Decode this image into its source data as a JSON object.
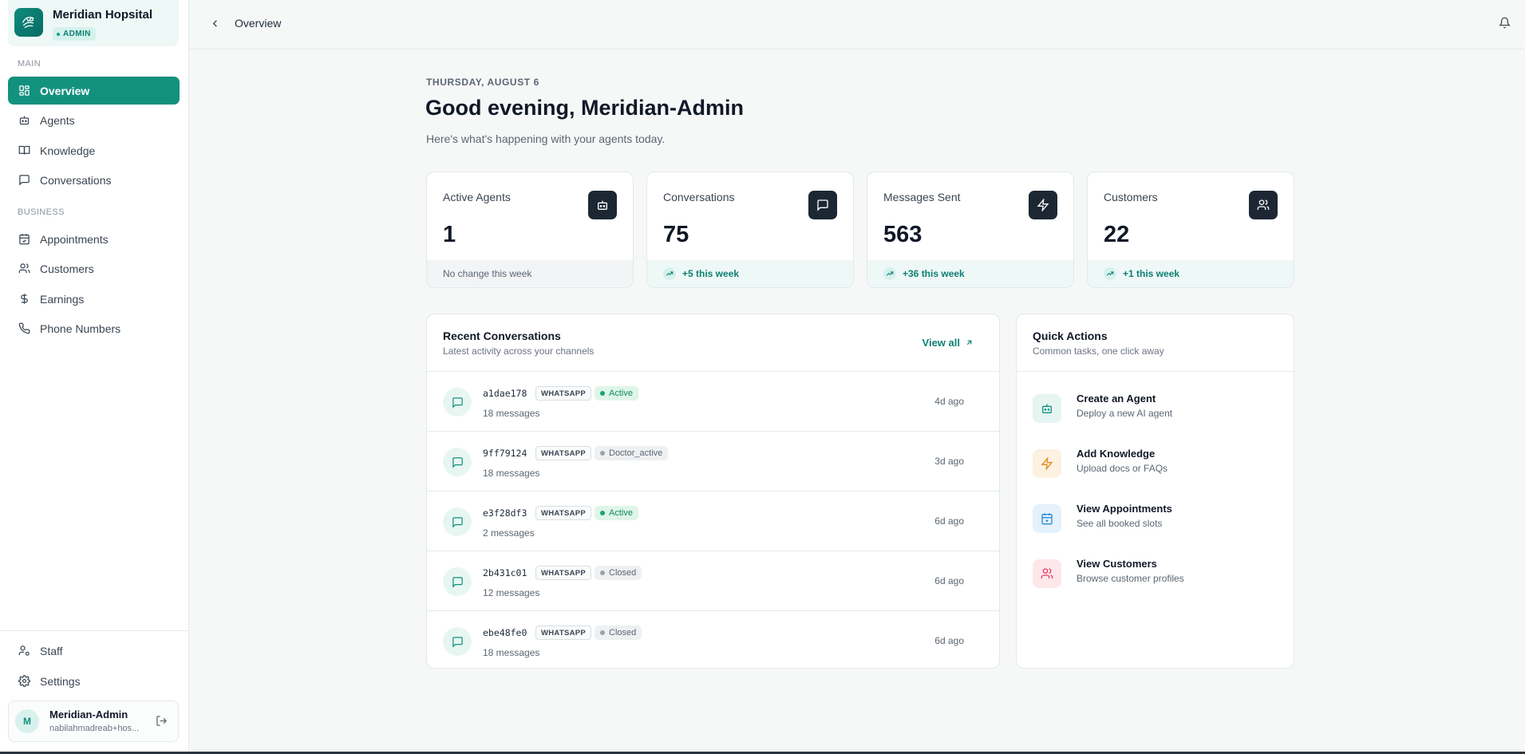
{
  "brand": {
    "name": "Meridian Hopsital",
    "badge": "ADMIN"
  },
  "sidebar": {
    "sections": {
      "main": "MAIN",
      "business": "BUSINESS"
    },
    "items": [
      {
        "label": "Overview",
        "icon": "grid-icon",
        "active": true
      },
      {
        "label": "Agents",
        "icon": "bot-icon"
      },
      {
        "label": "Knowledge",
        "icon": "book-icon"
      },
      {
        "label": "Conversations",
        "icon": "message-icon"
      },
      {
        "label": "Appointments",
        "icon": "calendar-icon"
      },
      {
        "label": "Customers",
        "icon": "users-icon"
      },
      {
        "label": "Earnings",
        "icon": "dollar-icon"
      },
      {
        "label": "Phone Numbers",
        "icon": "phone-icon"
      }
    ],
    "footer_items": [
      {
        "label": "Staff",
        "icon": "user-cog-icon"
      },
      {
        "label": "Settings",
        "icon": "gear-icon"
      }
    ],
    "user": {
      "initial": "M",
      "name": "Meridian-Admin",
      "email": "nabilahmadreab+hos..."
    }
  },
  "topbar": {
    "breadcrumb": "Overview"
  },
  "header": {
    "date": "THURSDAY, AUGUST 6",
    "greeting": "Good evening, Meridian-Admin",
    "subtitle": "Here's what's happening with your agents today."
  },
  "stats": [
    {
      "label": "Active Agents",
      "value": "1",
      "foot": "No change this week",
      "icon": "bot-icon",
      "trend": "neutral"
    },
    {
      "label": "Conversations",
      "value": "75",
      "foot": "+5 this week",
      "icon": "message-icon",
      "trend": "up"
    },
    {
      "label": "Messages Sent",
      "value": "563",
      "foot": "+36 this week",
      "icon": "zap-icon",
      "trend": "up"
    },
    {
      "label": "Customers",
      "value": "22",
      "foot": "+1 this week",
      "icon": "users-icon",
      "trend": "up"
    }
  ],
  "recent": {
    "title": "Recent Conversations",
    "subtitle": "Latest activity across your channels",
    "view_all": "View all",
    "rows": [
      {
        "id": "a1dae178",
        "channel": "WHATSAPP",
        "status": "Active",
        "messages": "18 messages",
        "time": "4d ago"
      },
      {
        "id": "9ff79124",
        "channel": "WHATSAPP",
        "status": "Doctor_active",
        "messages": "18 messages",
        "time": "3d ago"
      },
      {
        "id": "e3f28df3",
        "channel": "WHATSAPP",
        "status": "Active",
        "messages": "2 messages",
        "time": "6d ago"
      },
      {
        "id": "2b431c01",
        "channel": "WHATSAPP",
        "status": "Closed",
        "messages": "12 messages",
        "time": "6d ago"
      },
      {
        "id": "ebe48fe0",
        "channel": "WHATSAPP",
        "status": "Closed",
        "messages": "18 messages",
        "time": "6d ago"
      }
    ]
  },
  "quick_actions": {
    "title": "Quick Actions",
    "subtitle": "Common tasks, one click away",
    "items": [
      {
        "title": "Create an Agent",
        "subtitle": "Deploy a new AI agent",
        "icon": "bot-icon",
        "color": "#13917f"
      },
      {
        "title": "Add Knowledge",
        "subtitle": "Upload docs or FAQs",
        "icon": "zap-icon",
        "color": "#e58a1f"
      },
      {
        "title": "View Appointments",
        "subtitle": "See all booked slots",
        "icon": "calendar-plus-icon",
        "color": "#2b8bd6"
      },
      {
        "title": "View Customers",
        "subtitle": "Browse customer profiles",
        "icon": "users-icon",
        "color": "#e0405e"
      }
    ]
  },
  "colors": {
    "accent": "#13917f",
    "dark": "#1d2733",
    "active_status": "#14a86e",
    "closed_status": "#9aa3ab"
  }
}
